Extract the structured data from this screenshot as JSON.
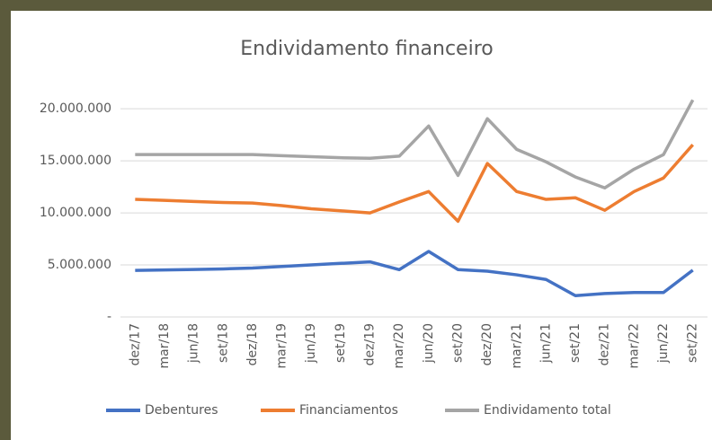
{
  "chart_data": {
    "type": "line",
    "title": "Endividamento financeiro",
    "categories": [
      "dez/17",
      "mar/18",
      "jun/18",
      "set/18",
      "dez/18",
      "mar/19",
      "jun/19",
      "set/19",
      "dez/19",
      "mar/20",
      "jun/20",
      "set/20",
      "dez/20",
      "mar/21",
      "jun/21",
      "set/21",
      "dez/21",
      "mar/22",
      "jun/22",
      "set/22"
    ],
    "series": [
      {
        "name": "Debentures",
        "color": "#4472c4",
        "values": [
          4480000,
          4520000,
          4560000,
          4620000,
          4700000,
          4850000,
          5000000,
          5150000,
          5300000,
          4550000,
          6300000,
          4550000,
          4400000,
          4050000,
          3600000,
          2050000,
          2250000,
          2350000,
          2350000,
          4500000
        ]
      },
      {
        "name": "Financiamentos",
        "color": "#ed7d31",
        "values": [
          11300000,
          11200000,
          11100000,
          11000000,
          10950000,
          10700000,
          10400000,
          10200000,
          10000000,
          11050000,
          12050000,
          9200000,
          14750000,
          12050000,
          11300000,
          11450000,
          10250000,
          12050000,
          13350000,
          16550000
        ]
      },
      {
        "name": "Endividamento total",
        "color": "#a5a5a5",
        "values": [
          15600000,
          15600000,
          15600000,
          15600000,
          15600000,
          15500000,
          15400000,
          15300000,
          15250000,
          15450000,
          18350000,
          13600000,
          19050000,
          16100000,
          14900000,
          13450000,
          12400000,
          14200000,
          15600000,
          20850000
        ]
      }
    ],
    "ylim": [
      0,
      22000000
    ],
    "yticks": [
      {
        "value": 0,
        "label": "-"
      },
      {
        "value": 5000000,
        "label": "5.000.000"
      },
      {
        "value": 10000000,
        "label": "10.000.000"
      },
      {
        "value": 15000000,
        "label": "15.000.000"
      },
      {
        "value": 20000000,
        "label": "20.000.000"
      }
    ],
    "grid": true,
    "legend": "bottom"
  }
}
